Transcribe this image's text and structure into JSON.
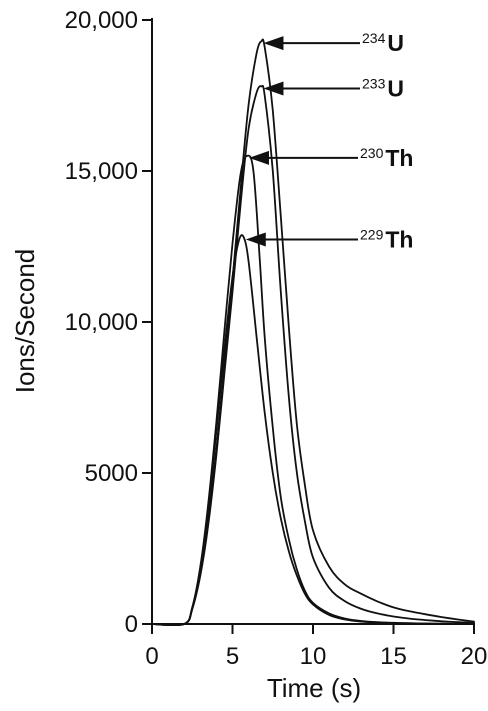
{
  "chart_data": {
    "type": "line",
    "xlabel": "Time (s)",
    "ylabel": "Ions/Second",
    "xlim": [
      0,
      20
    ],
    "ylim": [
      0,
      20000
    ],
    "x_ticks": [
      0,
      5,
      10,
      15,
      20
    ],
    "x_tick_labels": [
      "0",
      "5",
      "10",
      "15",
      "20"
    ],
    "y_ticks": [
      0,
      5000,
      10000,
      15000,
      20000
    ],
    "y_tick_labels": [
      "0",
      "5000",
      "10,000",
      "15,000",
      "20,000"
    ],
    "grid": false,
    "series": [
      {
        "name": "234U",
        "x": [
          0,
          2,
          2.5,
          3,
          3.5,
          4,
          4.5,
          5,
          5.5,
          6,
          6.5,
          6.8,
          7,
          7.5,
          8,
          8.5,
          9,
          9.5,
          10,
          11,
          12,
          13,
          14,
          15,
          16,
          17,
          18,
          19,
          20
        ],
        "y": [
          0,
          0,
          500,
          1700,
          3500,
          5800,
          8600,
          11400,
          14400,
          17200,
          18900,
          19300,
          19100,
          17000,
          13500,
          9800,
          6600,
          4600,
          3100,
          1900,
          1300,
          1000,
          750,
          550,
          420,
          320,
          230,
          150,
          80
        ]
      },
      {
        "name": "233U",
        "x": [
          0,
          2,
          2.5,
          3,
          3.5,
          4,
          4.5,
          5,
          5.5,
          6,
          6.5,
          6.8,
          7,
          7.5,
          8,
          8.5,
          9,
          9.5,
          10,
          11,
          12,
          13,
          14,
          15,
          16,
          17,
          18,
          19,
          20
        ],
        "y": [
          0,
          0,
          500,
          1600,
          3300,
          5600,
          8300,
          11000,
          13900,
          16400,
          17600,
          17800,
          17500,
          15000,
          11000,
          7500,
          5000,
          3400,
          2200,
          1200,
          750,
          500,
          350,
          250,
          180,
          130,
          90,
          60,
          40
        ]
      },
      {
        "name": "230Th",
        "x": [
          0,
          2,
          2.5,
          3,
          3.5,
          4,
          4.5,
          5,
          5.5,
          5.9,
          6.3,
          6.7,
          7,
          7.5,
          8,
          8.5,
          9,
          9.5,
          10,
          11,
          12,
          13,
          14,
          15,
          16,
          17,
          18,
          19,
          20
        ],
        "y": [
          0,
          0,
          550,
          1900,
          4000,
          6700,
          9700,
          12600,
          14900,
          15500,
          15000,
          12000,
          9500,
          6500,
          4200,
          2800,
          1800,
          1100,
          700,
          350,
          180,
          100,
          60,
          40,
          25,
          15,
          10,
          5,
          0
        ]
      },
      {
        "name": "229Th",
        "x": [
          0,
          2,
          2.5,
          3,
          3.5,
          4,
          4.5,
          5,
          5.4,
          5.7,
          6,
          6.5,
          7,
          7.5,
          8,
          8.5,
          9,
          9.5,
          10,
          11,
          12,
          13,
          14,
          15,
          16,
          17,
          18,
          19,
          20
        ],
        "y": [
          0,
          0,
          550,
          1800,
          3800,
          6400,
          9100,
          11500,
          12700,
          12800,
          12000,
          9500,
          7000,
          5000,
          3500,
          2400,
          1600,
          1000,
          650,
          300,
          150,
          80,
          50,
          30,
          20,
          12,
          8,
          4,
          0
        ]
      }
    ],
    "annotations": [
      {
        "sup": "234",
        "text": "U"
      },
      {
        "sup": "233",
        "text": "U"
      },
      {
        "sup": "230",
        "text": "Th"
      },
      {
        "sup": "229",
        "text": "Th"
      }
    ]
  }
}
